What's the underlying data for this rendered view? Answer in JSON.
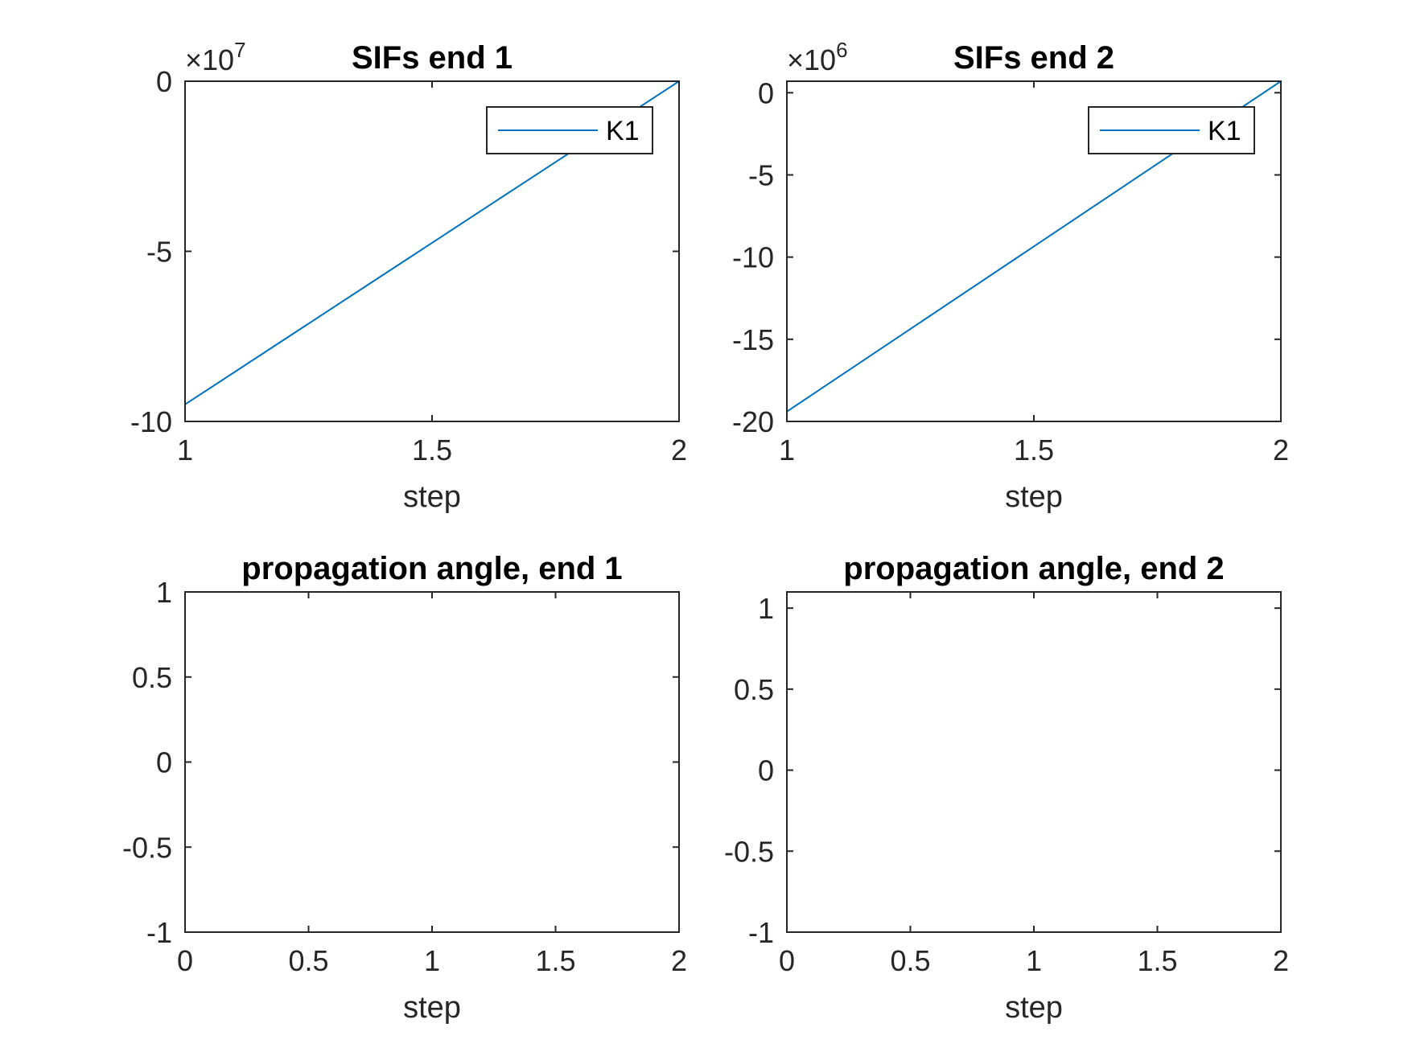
{
  "colors": {
    "series": "#0072BD",
    "axis": "#262626",
    "background": "#ffffff"
  },
  "chart_data": [
    {
      "type": "line",
      "title": "SIFs end 1",
      "xlabel": "step",
      "ylabel": "",
      "xlim": [
        1,
        2
      ],
      "ylim": [
        -10,
        0
      ],
      "y_exponent_label": {
        "base": "×10",
        "power": "7"
      },
      "xticks": [
        1,
        1.5,
        2
      ],
      "xtick_labels": [
        "1",
        "1.5",
        "2"
      ],
      "yticks": [
        -10,
        -5,
        0
      ],
      "ytick_labels": [
        "-10",
        "-5",
        "0"
      ],
      "grid": false,
      "legend_placement": "top-right",
      "series": [
        {
          "name": "K1",
          "x": [
            1,
            2
          ],
          "y": [
            -9.5,
            0
          ]
        }
      ]
    },
    {
      "type": "line",
      "title": "SIFs end 2",
      "xlabel": "step",
      "ylabel": "",
      "xlim": [
        1,
        2
      ],
      "ylim": [
        -20,
        0.7
      ],
      "y_exponent_label": {
        "base": "×10",
        "power": "6"
      },
      "xticks": [
        1,
        1.5,
        2
      ],
      "xtick_labels": [
        "1",
        "1.5",
        "2"
      ],
      "yticks": [
        -20,
        -15,
        -10,
        -5,
        0
      ],
      "ytick_labels": [
        "-20",
        "-15",
        "-10",
        "-5",
        "0"
      ],
      "grid": false,
      "legend_placement": "top-right",
      "series": [
        {
          "name": "K1",
          "x": [
            1,
            2
          ],
          "y": [
            -19.4,
            0.7
          ]
        }
      ]
    },
    {
      "type": "line",
      "title": "propagation angle, end 1",
      "xlabel": "step",
      "ylabel": "",
      "xlim": [
        0,
        2
      ],
      "ylim": [
        -1,
        1
      ],
      "xticks": [
        0,
        0.5,
        1,
        1.5,
        2
      ],
      "xtick_labels": [
        "0",
        "0.5",
        "1",
        "1.5",
        "2"
      ],
      "yticks": [
        -1,
        -0.5,
        0,
        0.5,
        1
      ],
      "ytick_labels": [
        "-1",
        "-0.5",
        "0",
        "0.5",
        "1"
      ],
      "grid": false,
      "series": []
    },
    {
      "type": "line",
      "title": "propagation angle, end 2",
      "xlabel": "step",
      "ylabel": "",
      "xlim": [
        0,
        2
      ],
      "ylim": [
        -1,
        1.1
      ],
      "xticks": [
        0,
        0.5,
        1,
        1.5,
        2
      ],
      "xtick_labels": [
        "0",
        "0.5",
        "1",
        "1.5",
        "2"
      ],
      "yticks": [
        -1,
        -0.5,
        0,
        0.5,
        1
      ],
      "ytick_labels": [
        "-1",
        "-0.5",
        "0",
        "0.5",
        "1"
      ],
      "grid": false,
      "series": []
    }
  ]
}
